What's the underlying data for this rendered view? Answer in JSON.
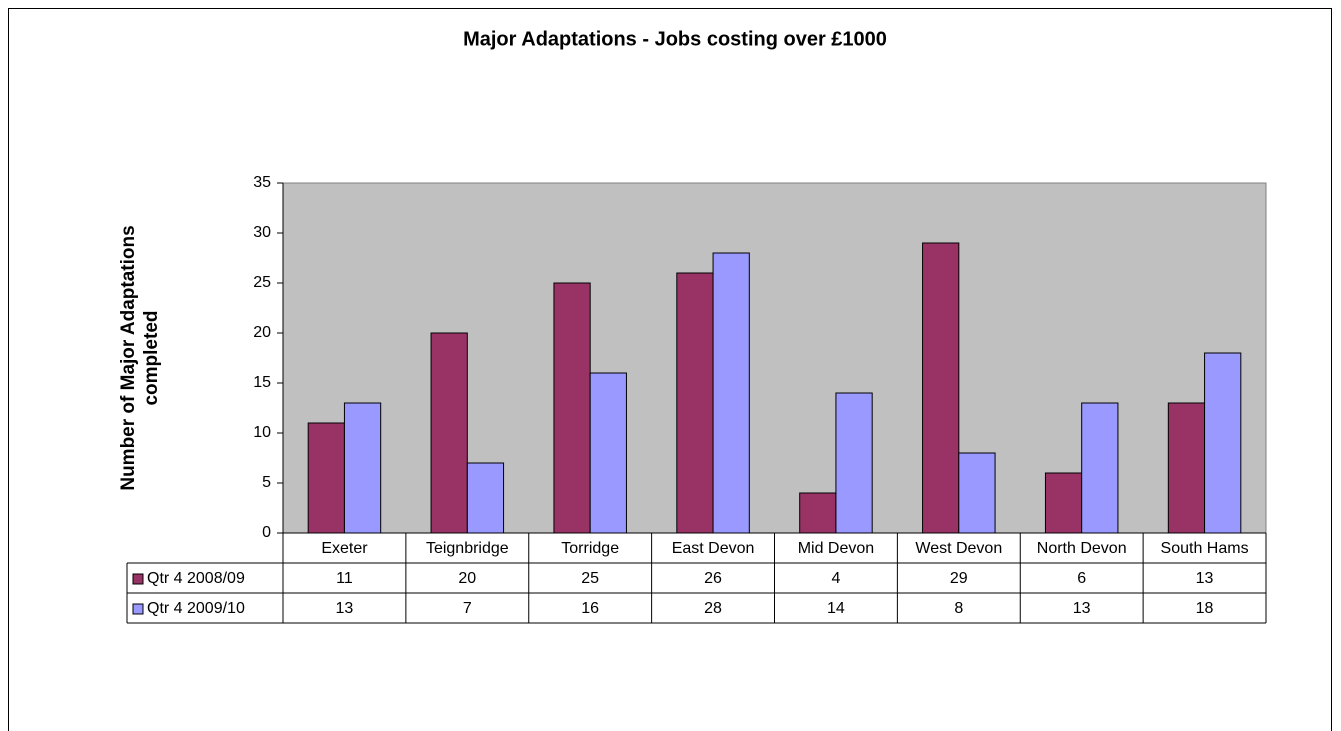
{
  "chart_data": {
    "type": "bar",
    "title": "Major Adaptations - Jobs costing over £1000",
    "y_label": "Number of Major Adaptations completed",
    "categories": [
      "Exeter",
      "Teignbridge",
      "Torridge",
      "East Devon",
      "Mid Devon",
      "West Devon",
      "North Devon",
      "South Hams"
    ],
    "series": [
      {
        "name": "Qtr 4 2008/09",
        "color": "#993366",
        "values": [
          11,
          20,
          25,
          26,
          4,
          29,
          6,
          13
        ]
      },
      {
        "name": "Qtr 4 2009/10",
        "color": "#9999ff",
        "values": [
          13,
          7,
          16,
          28,
          14,
          8,
          13,
          18
        ]
      }
    ],
    "ylim": [
      0,
      35
    ],
    "yticks": [
      0,
      5,
      10,
      15,
      20,
      25,
      30,
      35
    ],
    "plot_background": "#c0c0c0",
    "data_table": true
  }
}
